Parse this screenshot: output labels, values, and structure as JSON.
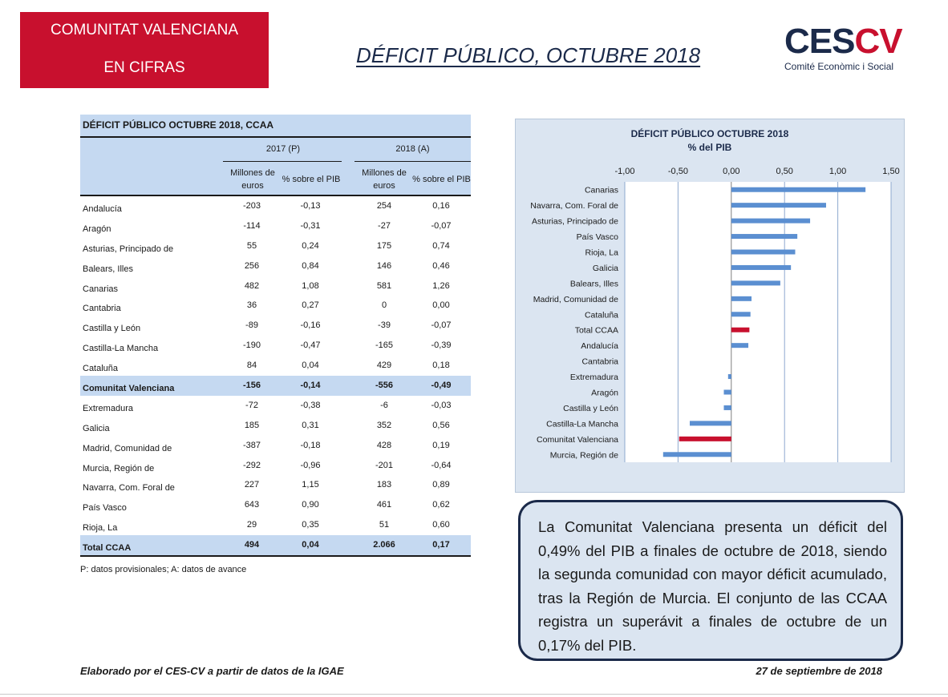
{
  "header": {
    "badge_line1": "COMUNITAT VALENCIANA",
    "badge_line2": "EN CIFRAS",
    "title": "DÉFICIT PÚBLICO, OCTUBRE 2018",
    "logo_mark_1": "CES",
    "logo_mark_2": "CV",
    "logo_sub": "Comité Econòmic i Social",
    "brand_red": "#c8102e",
    "brand_navy": "#1b2a4a"
  },
  "table": {
    "title": "DÉFICIT PÚBLICO  OCTUBRE 2018, CCAA",
    "group_2017": "2017 (P)",
    "group_2018": "2018 (A)",
    "col_millones": "Millones de euros",
    "col_pib": "% sobre el PIB",
    "rows": [
      {
        "name": "Andalucía",
        "m2017": "-203",
        "p2017": "-0,13",
        "m2018": "254",
        "p2018": "0,16"
      },
      {
        "name": "Aragón",
        "m2017": "-114",
        "p2017": "-0,31",
        "m2018": "-27",
        "p2018": "-0,07"
      },
      {
        "name": "Asturias, Principado de",
        "m2017": "55",
        "p2017": "0,24",
        "m2018": "175",
        "p2018": "0,74"
      },
      {
        "name": "Balears, Illes",
        "m2017": "256",
        "p2017": "0,84",
        "m2018": "146",
        "p2018": "0,46"
      },
      {
        "name": "Canarias",
        "m2017": "482",
        "p2017": "1,08",
        "m2018": "581",
        "p2018": "1,26"
      },
      {
        "name": "Cantabria",
        "m2017": "36",
        "p2017": "0,27",
        "m2018": "0",
        "p2018": "0,00"
      },
      {
        "name": "Castilla y León",
        "m2017": "-89",
        "p2017": "-0,16",
        "m2018": "-39",
        "p2018": "-0,07"
      },
      {
        "name": "Castilla-La Mancha",
        "m2017": "-190",
        "p2017": "-0,47",
        "m2018": "-165",
        "p2018": "-0,39"
      },
      {
        "name": "Cataluña",
        "m2017": "84",
        "p2017": "0,04",
        "m2018": "429",
        "p2018": "0,18"
      },
      {
        "name": "Comunitat Valenciana",
        "m2017": "-156",
        "p2017": "-0,14",
        "m2018": "-556",
        "p2018": "-0,49"
      },
      {
        "name": "Extremadura",
        "m2017": "-72",
        "p2017": "-0,38",
        "m2018": "-6",
        "p2018": "-0,03"
      },
      {
        "name": "Galicia",
        "m2017": "185",
        "p2017": "0,31",
        "m2018": "352",
        "p2018": "0,56"
      },
      {
        "name": "Madrid, Comunidad de",
        "m2017": "-387",
        "p2017": "-0,18",
        "m2018": "428",
        "p2018": "0,19"
      },
      {
        "name": "Murcia, Región de",
        "m2017": "-292",
        "p2017": "-0,96",
        "m2018": "-201",
        "p2018": "-0,64"
      },
      {
        "name": "Navarra, Com. Foral de",
        "m2017": "227",
        "p2017": "1,15",
        "m2018": "183",
        "p2018": "0,89"
      },
      {
        "name": "País Vasco",
        "m2017": "643",
        "p2017": "0,90",
        "m2018": "461",
        "p2018": "0,62"
      },
      {
        "name": "Rioja, La",
        "m2017": "29",
        "p2017": "0,35",
        "m2018": "51",
        "p2018": "0,60"
      },
      {
        "name": "Total CCAA",
        "m2017": "494",
        "p2017": "0,04",
        "m2018": "2.066",
        "p2018": "0,17"
      }
    ],
    "note": "P: datos provisionales; A: datos de avance",
    "highlight_color": "#c5d9f1"
  },
  "chart_data": {
    "type": "bar",
    "orientation": "horizontal",
    "title": "DÉFICIT PÚBLICO OCTUBRE 2018",
    "subtitle": "% del PIB",
    "categories": [
      "Canarias",
      "Navarra, Com. Foral de",
      "Asturias, Principado de",
      "País Vasco",
      "Rioja, La",
      "Galicia",
      "Balears, Illes",
      "Madrid, Comunidad de",
      "Cataluña",
      "Total CCAA",
      "Andalucía",
      "Cantabria",
      "Extremadura",
      "Aragón",
      "Castilla y León",
      "Castilla-La Mancha",
      "Comunitat Valenciana",
      "Murcia, Región de"
    ],
    "values": [
      1.26,
      0.89,
      0.74,
      0.62,
      0.6,
      0.56,
      0.46,
      0.19,
      0.18,
      0.17,
      0.16,
      0.0,
      -0.03,
      -0.07,
      -0.07,
      -0.39,
      -0.49,
      -0.64
    ],
    "highlight": [
      "Total CCAA",
      "Comunitat Valenciana"
    ],
    "bar_color": "#5b8fd1",
    "highlight_color": "#c8102e",
    "xlim": [
      -1.0,
      1.5
    ],
    "xticks": [
      -1.0,
      -0.5,
      0.0,
      0.5,
      1.0,
      1.5
    ],
    "xtick_labels": [
      "-1,00",
      "-0,50",
      "0,00",
      "0,50",
      "1,00",
      "1,50"
    ],
    "axis_position": "top",
    "grid": true
  },
  "summary": {
    "text": "La Comunitat Valenciana presenta un déficit del 0,49% del PIB a finales de octubre de 2018, siendo la segunda comunidad con mayor déficit acumulado, tras la Región de Murcia. El conjunto de las CCAA registra un superávit a finales de octubre de un 0,17% del PIB."
  },
  "footer": {
    "source": "Elaborado por el CES-CV a partir de datos de la IGAE",
    "date": "27 de septiembre de 2018"
  }
}
